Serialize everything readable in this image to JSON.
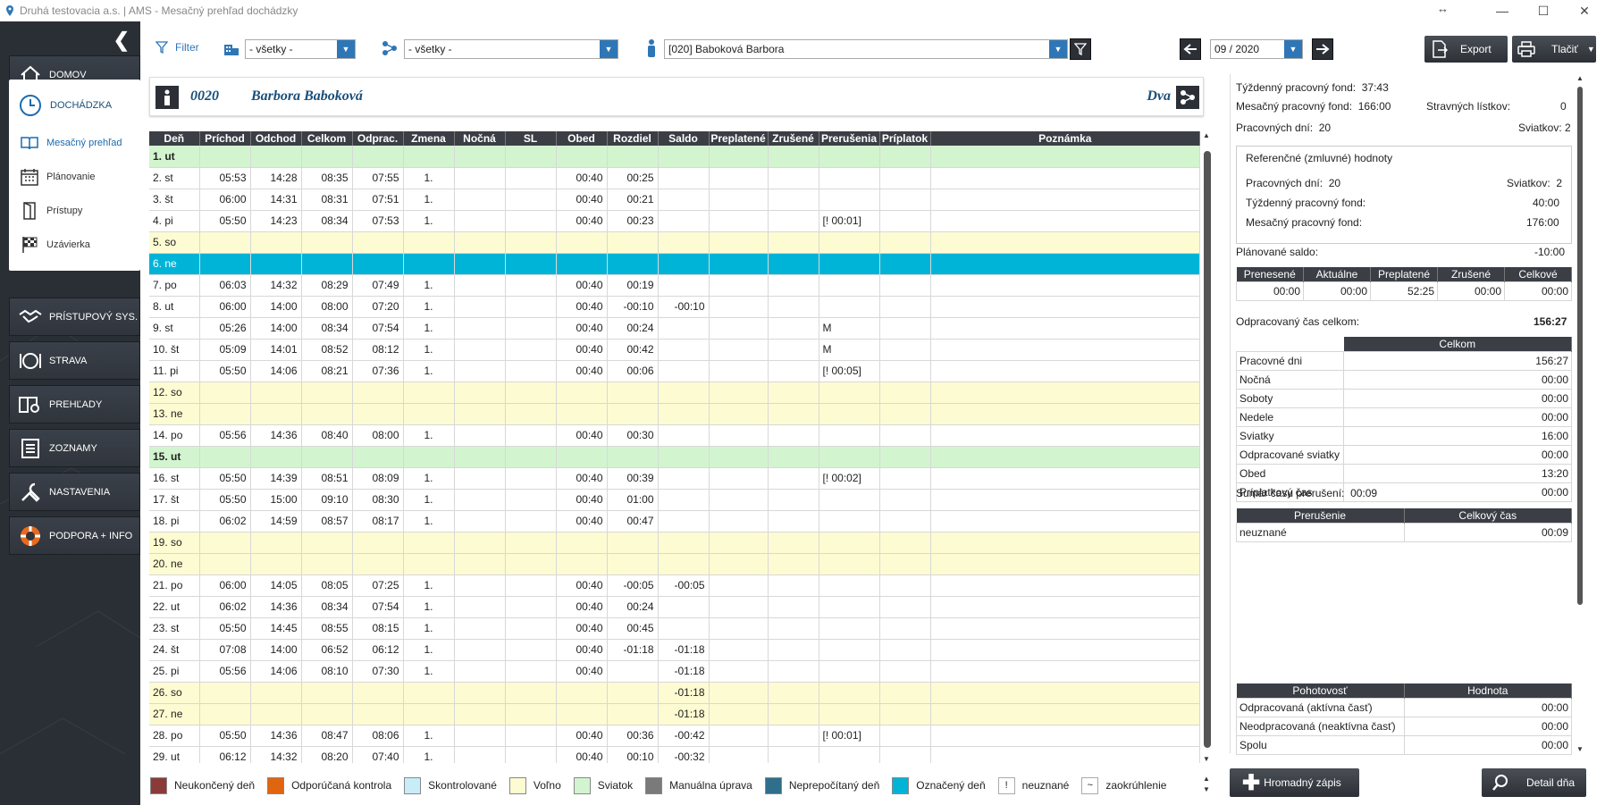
{
  "window": {
    "title": "Druhá testovacia a.s. | AMS - Mesačný prehľad dochádzky"
  },
  "sidebar": {
    "items": [
      {
        "label": "DOMOV"
      },
      {
        "label": "DOCHÁDZKA"
      },
      {
        "label": "PRÍSTUPOVÝ SYS."
      },
      {
        "label": "STRAVA"
      },
      {
        "label": "PREHĽADY"
      },
      {
        "label": "ZOZNAMY"
      },
      {
        "label": "NASTAVENIA"
      },
      {
        "label": "PODPORA + INFO"
      }
    ],
    "subitems": [
      {
        "label": "Mesačný prehľad"
      },
      {
        "label": "Plánovanie"
      },
      {
        "label": "Prístupy"
      },
      {
        "label": "Uzávierka"
      }
    ]
  },
  "toolbar": {
    "filter_label": "Filter",
    "combo1": "- všetky -",
    "combo2": "- všetky -",
    "employee": "[020] Baboková Barbora",
    "period": "09 / 2020",
    "export_label": "Export",
    "print_label": "Tlačiť"
  },
  "employee": {
    "code": "0020",
    "name": "Barbora Baboková",
    "group": "Dva"
  },
  "table": {
    "headers": [
      "Deň",
      "Príchod",
      "Odchod",
      "Celkom",
      "Odprac.",
      "Zmena",
      "Nočná",
      "SL",
      "Obed",
      "Rozdiel",
      "Saldo",
      "Preplatené",
      "Zrušené",
      "Prerušenia",
      "Príplatok",
      "Poznámka"
    ],
    "rows": [
      {
        "type": "holiday",
        "cells": [
          "1. ut",
          "",
          "",
          "",
          "",
          "",
          "",
          "",
          "",
          "",
          "",
          "",
          "",
          "",
          "",
          ""
        ]
      },
      {
        "type": "normal",
        "cells": [
          "2. st",
          "05:53",
          "14:28",
          "08:35",
          "07:55",
          "1.",
          "",
          "",
          "00:40",
          "00:25",
          "",
          "",
          "",
          "",
          "",
          ""
        ]
      },
      {
        "type": "normal",
        "cells": [
          "3. št",
          "06:00",
          "14:31",
          "08:31",
          "07:51",
          "1.",
          "",
          "",
          "00:40",
          "00:21",
          "",
          "",
          "",
          "",
          "",
          ""
        ]
      },
      {
        "type": "normal",
        "cells": [
          "4. pi",
          "05:50",
          "14:23",
          "08:34",
          "07:53",
          "1.",
          "",
          "",
          "00:40",
          "00:23",
          "",
          "",
          "",
          "[! 00:01]",
          "",
          ""
        ]
      },
      {
        "type": "weekend",
        "cells": [
          "5. so",
          "",
          "",
          "",
          "",
          "",
          "",
          "",
          "",
          "",
          "",
          "",
          "",
          "",
          "",
          ""
        ]
      },
      {
        "type": "marked",
        "cells": [
          "6. ne",
          "",
          "",
          "",
          "",
          "",
          "",
          "",
          "",
          "",
          "",
          "",
          "",
          "",
          "",
          ""
        ]
      },
      {
        "type": "normal",
        "cells": [
          "7. po",
          "06:03",
          "14:32",
          "08:29",
          "07:49",
          "1.",
          "",
          "",
          "00:40",
          "00:19",
          "",
          "",
          "",
          "",
          "",
          ""
        ]
      },
      {
        "type": "normal",
        "cells": [
          "8. ut",
          "06:00",
          "14:00",
          "08:00",
          "07:20",
          "1.",
          "",
          "",
          "00:40",
          "-00:10",
          "-00:10",
          "",
          "",
          "",
          "",
          ""
        ]
      },
      {
        "type": "normal",
        "cells": [
          "9. st",
          "05:26",
          "14:00",
          "08:34",
          "07:54",
          "1.",
          "",
          "",
          "00:40",
          "00:24",
          "",
          "",
          "",
          "M",
          "",
          ""
        ]
      },
      {
        "type": "normal",
        "cells": [
          "10. št",
          "05:09",
          "14:01",
          "08:52",
          "08:12",
          "1.",
          "",
          "",
          "00:40",
          "00:42",
          "",
          "",
          "",
          "M",
          "",
          ""
        ]
      },
      {
        "type": "normal",
        "cells": [
          "11. pi",
          "05:50",
          "14:06",
          "08:21",
          "07:36",
          "1.",
          "",
          "",
          "00:40",
          "00:06",
          "",
          "",
          "",
          "[! 00:05]",
          "",
          ""
        ]
      },
      {
        "type": "weekend",
        "cells": [
          "12. so",
          "",
          "",
          "",
          "",
          "",
          "",
          "",
          "",
          "",
          "",
          "",
          "",
          "",
          "",
          ""
        ]
      },
      {
        "type": "weekend",
        "cells": [
          "13. ne",
          "",
          "",
          "",
          "",
          "",
          "",
          "",
          "",
          "",
          "",
          "",
          "",
          "",
          "",
          ""
        ]
      },
      {
        "type": "normal",
        "cells": [
          "14. po",
          "05:56",
          "14:36",
          "08:40",
          "08:00",
          "1.",
          "",
          "",
          "00:40",
          "00:30",
          "",
          "",
          "",
          "",
          "",
          ""
        ]
      },
      {
        "type": "holiday",
        "cells": [
          "15. ut",
          "",
          "",
          "",
          "",
          "",
          "",
          "",
          "",
          "",
          "",
          "",
          "",
          "",
          "",
          ""
        ]
      },
      {
        "type": "normal",
        "cells": [
          "16. st",
          "05:50",
          "14:39",
          "08:51",
          "08:09",
          "1.",
          "",
          "",
          "00:40",
          "00:39",
          "",
          "",
          "",
          "[! 00:02]",
          "",
          ""
        ]
      },
      {
        "type": "normal",
        "cells": [
          "17. št",
          "05:50",
          "15:00",
          "09:10",
          "08:30",
          "1.",
          "",
          "",
          "00:40",
          "01:00",
          "",
          "",
          "",
          "",
          "",
          ""
        ]
      },
      {
        "type": "normal",
        "cells": [
          "18. pi",
          "06:02",
          "14:59",
          "08:57",
          "08:17",
          "1.",
          "",
          "",
          "00:40",
          "00:47",
          "",
          "",
          "",
          "",
          "",
          ""
        ]
      },
      {
        "type": "weekend",
        "cells": [
          "19. so",
          "",
          "",
          "",
          "",
          "",
          "",
          "",
          "",
          "",
          "",
          "",
          "",
          "",
          "",
          ""
        ]
      },
      {
        "type": "weekend",
        "cells": [
          "20. ne",
          "",
          "",
          "",
          "",
          "",
          "",
          "",
          "",
          "",
          "",
          "",
          "",
          "",
          "",
          ""
        ]
      },
      {
        "type": "normal",
        "cells": [
          "21. po",
          "06:00",
          "14:05",
          "08:05",
          "07:25",
          "1.",
          "",
          "",
          "00:40",
          "-00:05",
          "-00:05",
          "",
          "",
          "",
          "",
          ""
        ]
      },
      {
        "type": "normal",
        "cells": [
          "22. ut",
          "06:02",
          "14:36",
          "08:34",
          "07:54",
          "1.",
          "",
          "",
          "00:40",
          "00:24",
          "",
          "",
          "",
          "",
          "",
          ""
        ]
      },
      {
        "type": "normal",
        "cells": [
          "23. st",
          "05:50",
          "14:45",
          "08:55",
          "08:15",
          "1.",
          "",
          "",
          "00:40",
          "00:45",
          "",
          "",
          "",
          "",
          "",
          ""
        ]
      },
      {
        "type": "normal",
        "cells": [
          "24. št",
          "07:08",
          "14:00",
          "06:52",
          "06:12",
          "1.",
          "",
          "",
          "00:40",
          "-01:18",
          "-01:18",
          "",
          "",
          "",
          "",
          ""
        ]
      },
      {
        "type": "normal",
        "cells": [
          "25. pi",
          "05:56",
          "14:06",
          "08:10",
          "07:30",
          "1.",
          "",
          "",
          "00:40",
          "",
          "-01:18",
          "",
          "",
          "",
          "",
          ""
        ]
      },
      {
        "type": "weekend",
        "cells": [
          "26. so",
          "",
          "",
          "",
          "",
          "",
          "",
          "",
          "",
          "",
          "-01:18",
          "",
          "",
          "",
          "",
          ""
        ]
      },
      {
        "type": "weekend",
        "cells": [
          "27. ne",
          "",
          "",
          "",
          "",
          "",
          "",
          "",
          "",
          "",
          "-01:18",
          "",
          "",
          "",
          "",
          ""
        ]
      },
      {
        "type": "normal",
        "cells": [
          "28. po",
          "05:50",
          "14:36",
          "08:47",
          "08:06",
          "1.",
          "",
          "",
          "00:40",
          "00:36",
          "-00:42",
          "",
          "",
          "[! 00:01]",
          "",
          ""
        ]
      },
      {
        "type": "normal",
        "cells": [
          "29. ut",
          "06:12",
          "14:32",
          "08:20",
          "07:40",
          "1.",
          "",
          "",
          "00:40",
          "00:10",
          "-00:32",
          "",
          "",
          "",
          "",
          ""
        ]
      }
    ]
  },
  "legend": [
    {
      "label": "Neukončený deň",
      "color": "#8b3a3a"
    },
    {
      "label": "Odporúčaná kontrola",
      "color": "#e0650f"
    },
    {
      "label": "Skontrolované",
      "color": "#c8ecf8"
    },
    {
      "label": "Voľno",
      "color": "#fdfbd1"
    },
    {
      "label": "Sviatok",
      "color": "#d2f5cf"
    },
    {
      "label": "Manuálna úprava",
      "color": "#7a7a7a"
    },
    {
      "label": "Neprepočítaný deň",
      "color": "#2f6f8c"
    },
    {
      "label": "Označený deň",
      "color": "#00b4d8"
    }
  ],
  "legend_symbols": [
    {
      "symbol": "!",
      "label": "neuznané"
    },
    {
      "symbol": "~",
      "label": "zaokrúhlenie"
    }
  ],
  "summary": {
    "weekly_fund_label": "Týždenný pracovný fond:",
    "weekly_fund": "37:43",
    "monthly_fund_label": "Mesačný pracovný fond:",
    "monthly_fund": "166:00",
    "meal_label": "Stravných lístkov:",
    "meal": "0",
    "workdays_label": "Pracovných dní:",
    "workdays": "20",
    "holidays_label": "Sviatkov:",
    "holidays": "2",
    "ref_title": "Referenčné (zmluvné) hodnoty",
    "ref_workdays_label": "Pracovných dní:",
    "ref_workdays": "20",
    "ref_holidays_label": "Sviatkov:",
    "ref_holidays": "2",
    "ref_weekly_label": "Týždenný pracovný fond:",
    "ref_weekly": "40:00",
    "ref_monthly_label": "Mesačný pracovný fond:",
    "ref_monthly": "176:00",
    "planned_label": "Plánované saldo:",
    "planned": "-10:00",
    "saldo_headers": [
      "Prenesené",
      "Aktuálne",
      "Preplatené",
      "Zrušené",
      "Celkové"
    ],
    "saldo_values": [
      "00:00",
      "00:00",
      "52:25",
      "00:00",
      "00:00"
    ],
    "worked_label": "Odpracovaný čas celkom:",
    "worked": "156:27",
    "worked_header": "Celkom",
    "worked_rows": [
      {
        "label": "Pracovné dni",
        "value": "156:27"
      },
      {
        "label": "Nočná",
        "value": "00:00"
      },
      {
        "label": "Soboty",
        "value": "00:00"
      },
      {
        "label": "Nedele",
        "value": "00:00"
      },
      {
        "label": "Sviatky",
        "value": "16:00"
      },
      {
        "label": "Odpracované sviatky",
        "value": "00:00"
      },
      {
        "label": "Obed",
        "value": "13:20"
      },
      {
        "label": "Príplatkový čas",
        "value": "00:00"
      }
    ],
    "breaks_label": "Sumár času prerušení:",
    "breaks": "00:09",
    "breaks_headers": [
      "Prerušenie",
      "Celkový čas"
    ],
    "breaks_rows": [
      {
        "label": "neuznané",
        "value": "00:09"
      }
    ],
    "standby_headers": [
      "Pohotovosť",
      "Hodnota"
    ],
    "standby_rows": [
      {
        "label": "Odpracovaná (aktívna časť)",
        "value": "00:00"
      },
      {
        "label": "Neodpracovaná (neaktívna časť)",
        "value": "00:00"
      },
      {
        "label": "Spolu",
        "value": "00:00"
      }
    ]
  },
  "bottom": {
    "bulk_label": "Hromadný zápis",
    "detail_label": "Detail dňa"
  }
}
